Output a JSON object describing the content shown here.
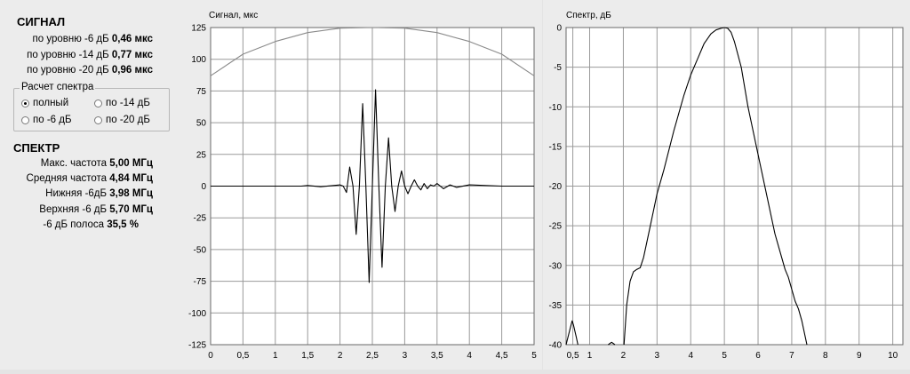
{
  "signal": {
    "title": "СИГНАЛ",
    "rows": [
      {
        "label": "по уровню -6 дБ",
        "value": "0,46 мкс"
      },
      {
        "label": "по уровню -14 дБ",
        "value": "0,77 мкс"
      },
      {
        "label": "по уровню -20 дБ",
        "value": "0,96 мкс"
      }
    ]
  },
  "spectrum_calc": {
    "title": "Расчет спектра",
    "options": [
      "полный",
      "по -14 дБ",
      "по -6 дБ",
      "по -20 дБ"
    ],
    "selected": "полный"
  },
  "spectrum": {
    "title": "СПЕКТР",
    "rows": [
      {
        "label": "Макс. частота",
        "value": "5,00 МГц"
      },
      {
        "label": "Средняя частота",
        "value": "4,84 МГц"
      },
      {
        "label": "Нижняя -6дБ",
        "value": "3,98 МГц"
      },
      {
        "label": "Верхняя -6 дБ",
        "value": "5,70 МГц"
      },
      {
        "label": "-6 дБ полоса",
        "value": "35,5 %"
      }
    ]
  },
  "chart_data": [
    {
      "type": "line",
      "title": "Сигнал, мкс",
      "xlim": [
        0,
        5
      ],
      "ylim": [
        -125,
        125
      ],
      "xticks": [
        "0",
        "0,5",
        "1",
        "1,5",
        "2",
        "2,5",
        "3",
        "3,5",
        "4",
        "4,5",
        "5"
      ],
      "yticks": [
        "125",
        "100",
        "75",
        "50",
        "25",
        "0",
        "-25",
        "-50",
        "-75",
        "-100",
        "-125"
      ],
      "grid": true,
      "series": [
        {
          "role": "window",
          "color": "#8a8a8a",
          "x": [
            0,
            0.5,
            1,
            1.5,
            2,
            2.5,
            3,
            3.5,
            4,
            4.5,
            5
          ],
          "y": [
            87,
            104,
            114,
            121,
            124.5,
            125,
            124.5,
            121,
            114,
            104,
            87
          ]
        },
        {
          "role": "signal",
          "color": "#000000",
          "x": [
            0,
            1.4,
            1.5,
            1.7,
            1.9,
            2.0,
            2.05,
            2.1,
            2.15,
            2.2,
            2.25,
            2.3,
            2.35,
            2.4,
            2.45,
            2.5,
            2.55,
            2.6,
            2.65,
            2.7,
            2.75,
            2.8,
            2.85,
            2.9,
            2.95,
            3.0,
            3.05,
            3.1,
            3.15,
            3.2,
            3.25,
            3.3,
            3.35,
            3.4,
            3.45,
            3.5,
            3.6,
            3.7,
            3.8,
            4.0,
            4.5,
            5.0
          ],
          "y": [
            0,
            0,
            0.5,
            -0.5,
            0.5,
            1,
            0,
            -5,
            15,
            0,
            -38,
            0,
            65,
            0,
            -76,
            0,
            76,
            0,
            -64,
            0,
            38,
            0,
            -20,
            0,
            12,
            0,
            -6,
            0,
            5,
            0,
            -3,
            2,
            -2,
            1,
            0,
            2,
            -2,
            1,
            -1,
            1,
            0,
            0
          ]
        }
      ]
    },
    {
      "type": "line",
      "title": "Спектр, дБ",
      "xlim": [
        0.3,
        10.3
      ],
      "ylim": [
        -40,
        0
      ],
      "xticks": [
        "0,5",
        "1",
        "2",
        "3",
        "4",
        "5",
        "6",
        "7",
        "8",
        "9",
        "10"
      ],
      "yticks": [
        "0",
        "-5",
        "-10",
        "-15",
        "-20",
        "-25",
        "-30",
        "-35",
        "-40"
      ],
      "grid": true,
      "series": [
        {
          "role": "spectrum",
          "color": "#000000",
          "x": [
            0.3,
            0.42,
            0.48,
            0.52,
            0.6,
            0.65
          ],
          "y": [
            -40,
            -38,
            -37,
            -37.5,
            -39,
            -40
          ]
        },
        {
          "role": "spectrum",
          "color": "#000000",
          "x": [
            1.55,
            1.65,
            1.75
          ],
          "y": [
            -40,
            -39.7,
            -40
          ]
        },
        {
          "role": "spectrum",
          "color": "#000000",
          "x": [
            2.02,
            2.1,
            2.2,
            2.3,
            2.4,
            2.5,
            2.6,
            2.8,
            3.0,
            3.2,
            3.5,
            3.8,
            4.0,
            4.2,
            4.4,
            4.6,
            4.75,
            4.9,
            5.0,
            5.1,
            5.2,
            5.3,
            5.5,
            5.7,
            6.0,
            6.3,
            6.5,
            6.7,
            6.8,
            6.9,
            7.0,
            7.1,
            7.2,
            7.3,
            7.4,
            7.45
          ],
          "y": [
            -40,
            -35,
            -32,
            -30.8,
            -30.5,
            -30.3,
            -29,
            -25,
            -21,
            -18,
            -13,
            -8.5,
            -6,
            -4,
            -2,
            -0.8,
            -0.3,
            -0.1,
            0,
            -0.1,
            -0.6,
            -1.8,
            -5,
            -10,
            -16,
            -22,
            -26,
            -29,
            -30.5,
            -31.5,
            -33,
            -34.5,
            -35.5,
            -37,
            -39,
            -40
          ]
        }
      ]
    }
  ]
}
